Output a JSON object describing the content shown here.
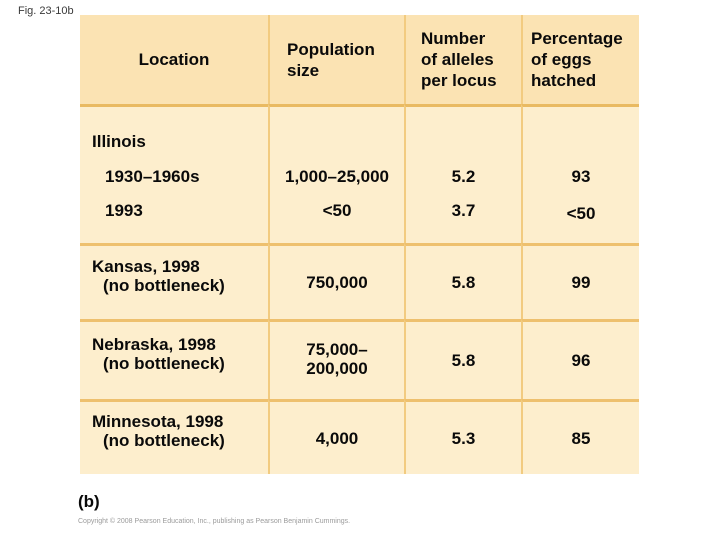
{
  "figure": {
    "label": "Fig. 23-10b",
    "sublabel": "(b)",
    "copyright": "Copyright © 2008 Pearson Education, Inc., publishing as Pearson Benjamin Cummings."
  },
  "colors": {
    "header_bg": "#fbe3b3",
    "body_bg": "#fdeecd",
    "grid_vertical": "#f2cb80",
    "grid_horizontal": "#eec06e",
    "page_bg": "#ffffff",
    "text": "#0a0a0a"
  },
  "table": {
    "headers": [
      "Location",
      "Population\nsize",
      "Number\nof alleles\nper locus",
      "Percentage\nof eggs\nhatched"
    ],
    "illinois": {
      "section": "Illinois",
      "rows": [
        {
          "label": "1930–1960s",
          "population": "1,000–25,000",
          "alleles": "5.2",
          "eggs": "93"
        },
        {
          "label": "1993",
          "population": "<50",
          "alleles": "3.7",
          "eggs": "<50"
        }
      ]
    },
    "rows": [
      {
        "location": "Kansas, 1998",
        "note": "(no bottleneck)",
        "population": "750,000",
        "alleles": "5.8",
        "eggs": "99"
      },
      {
        "location": "Nebraska, 1998",
        "note": "(no bottleneck)",
        "population": "75,000–\n200,000",
        "alleles": "5.8",
        "eggs": "96"
      },
      {
        "location": "Minnesota, 1998",
        "note": "(no bottleneck)",
        "population": "4,000",
        "alleles": "5.3",
        "eggs": "85"
      }
    ]
  },
  "chart_data": {
    "type": "table",
    "title": "Fig. 23-10b",
    "columns": [
      "Location",
      "Population size",
      "Number of alleles per locus",
      "Percentage of eggs hatched"
    ],
    "rows": [
      [
        "Illinois 1930–1960s",
        "1,000–25,000",
        "5.2",
        "93"
      ],
      [
        "Illinois 1993",
        "<50",
        "3.7",
        "<50"
      ],
      [
        "Kansas, 1998 (no bottleneck)",
        "750,000",
        "5.8",
        "99"
      ],
      [
        "Nebraska, 1998 (no bottleneck)",
        "75,000–200,000",
        "5.8",
        "96"
      ],
      [
        "Minnesota, 1998 (no bottleneck)",
        "4,000",
        "5.3",
        "85"
      ]
    ]
  }
}
